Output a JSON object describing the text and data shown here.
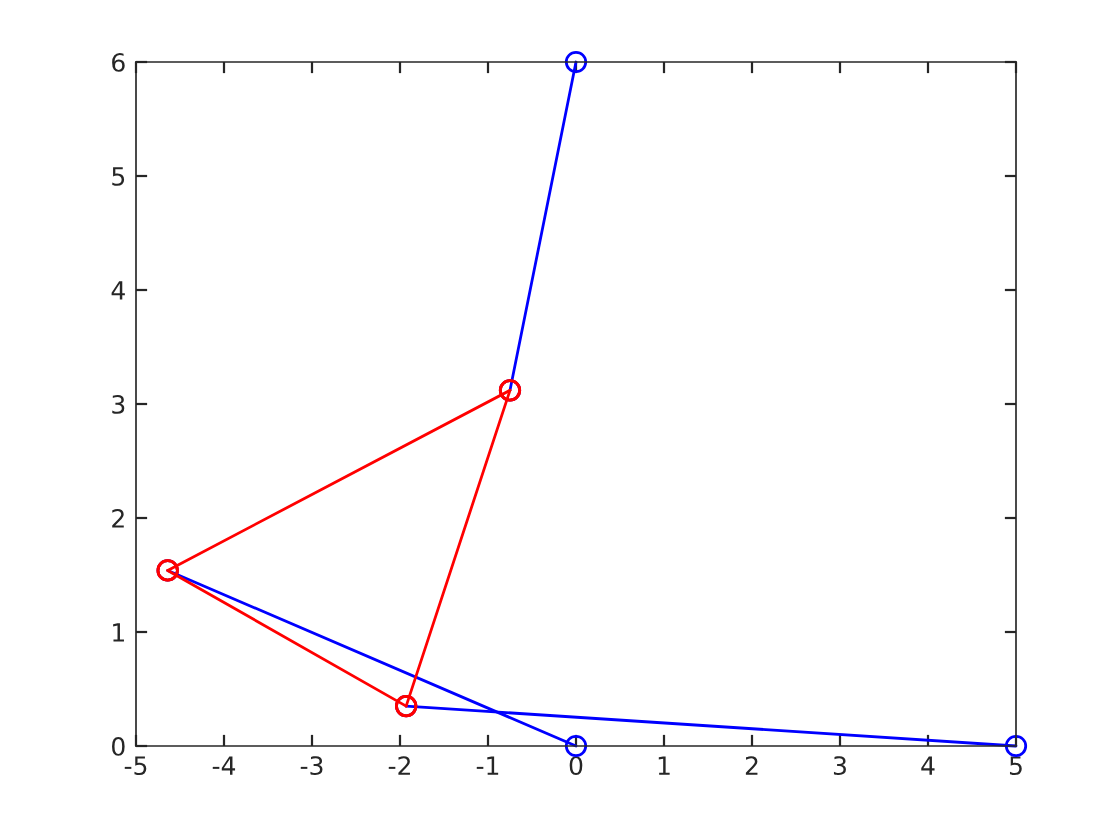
{
  "chart_data": {
    "type": "line",
    "marker": "circle",
    "xlim": [
      -5,
      5
    ],
    "ylim": [
      0,
      6
    ],
    "xticks": [
      -5,
      -4,
      -3,
      -2,
      -1,
      0,
      1,
      2,
      3,
      4,
      5
    ],
    "yticks": [
      0,
      1,
      2,
      3,
      4,
      5,
      6
    ],
    "grid": false,
    "legend": false,
    "series": [
      {
        "color": "#0000ff",
        "x": [
          0,
          -0.75
        ],
        "values": [
          6,
          3.12
        ]
      },
      {
        "color": "#0000ff",
        "x": [
          -4.64,
          0
        ],
        "values": [
          1.54,
          0
        ]
      },
      {
        "color": "#0000ff",
        "x": [
          -1.93,
          5
        ],
        "values": [
          0.35,
          0
        ]
      },
      {
        "color": "#ff0000",
        "x": [
          -0.75,
          -4.64
        ],
        "values": [
          3.12,
          1.54
        ]
      },
      {
        "color": "#ff0000",
        "x": [
          -4.64,
          -1.93
        ],
        "values": [
          1.54,
          0.35
        ]
      },
      {
        "color": "#ff0000",
        "x": [
          -1.93,
          -0.75
        ],
        "values": [
          0.35,
          3.12
        ]
      }
    ]
  }
}
